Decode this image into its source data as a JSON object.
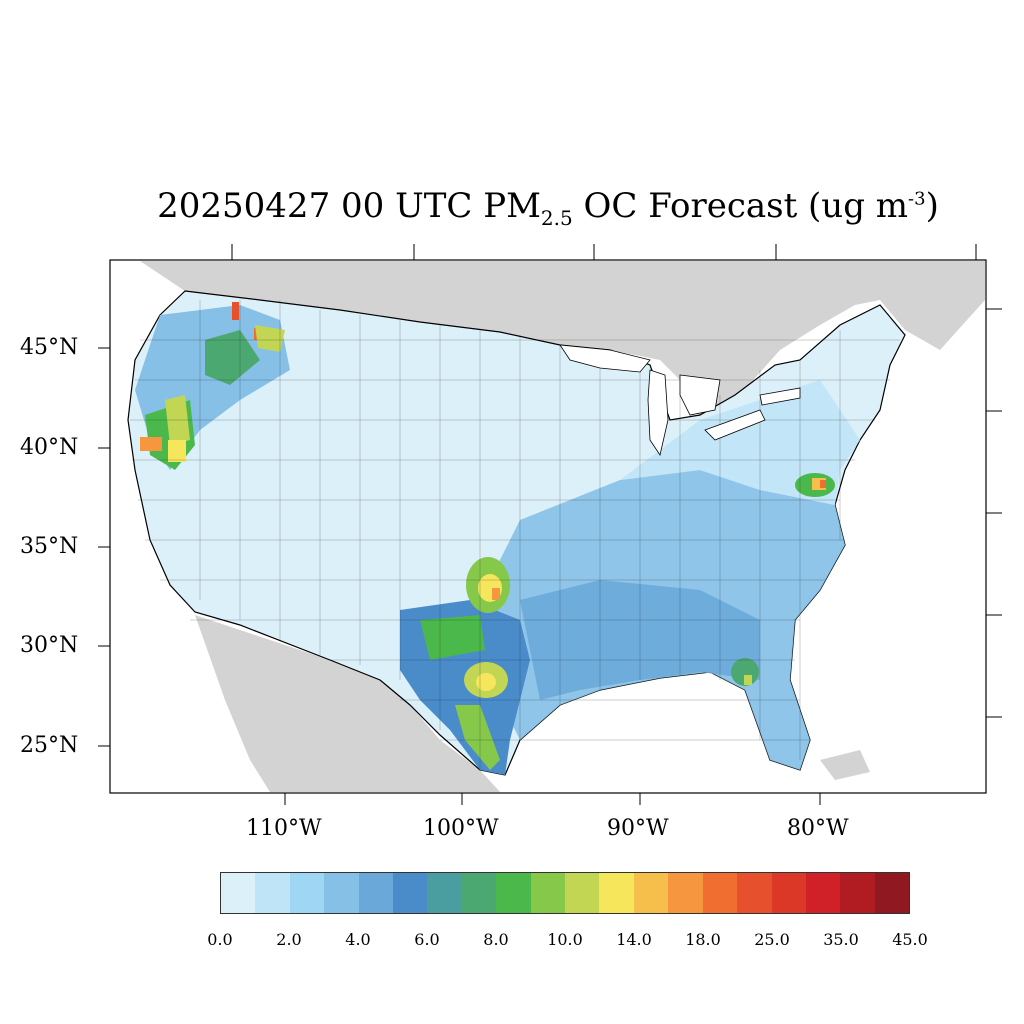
{
  "title": {
    "prefix": "20250427 00 UTC PM",
    "sub": "2.5",
    "middle": " OC Forecast (ug m",
    "sup": "-3",
    "suffix": ")"
  },
  "lat_labels": [
    "45°N",
    "40°N",
    "35°N",
    "30°N",
    "25°N"
  ],
  "lon_labels": [
    "110°W",
    "100°W",
    "90°W",
    "80°W"
  ],
  "colorbar": {
    "colors": [
      "#dcf0fa",
      "#bfe3f7",
      "#9fd6f3",
      "#86c0e6",
      "#6aa8da",
      "#4a8bca",
      "#4a9ea0",
      "#4aa870",
      "#4ab84a",
      "#86c84a",
      "#c2d654",
      "#f6e65c",
      "#f6be4a",
      "#f6963e",
      "#f06e30",
      "#e6502c",
      "#dc3828",
      "#d02028",
      "#b01c22",
      "#901820"
    ],
    "tick_labels": [
      "0.0",
      "2.0",
      "4.0",
      "6.0",
      "8.0",
      "10.0",
      "14.0",
      "18.0",
      "25.0",
      "35.0",
      "45.0"
    ]
  },
  "map_colors": {
    "background_land": "#d3d3d3",
    "ocean": "#ffffff",
    "low": "#dcf0fa",
    "mid": "#86c0e6",
    "high": "#4a8bca"
  }
}
